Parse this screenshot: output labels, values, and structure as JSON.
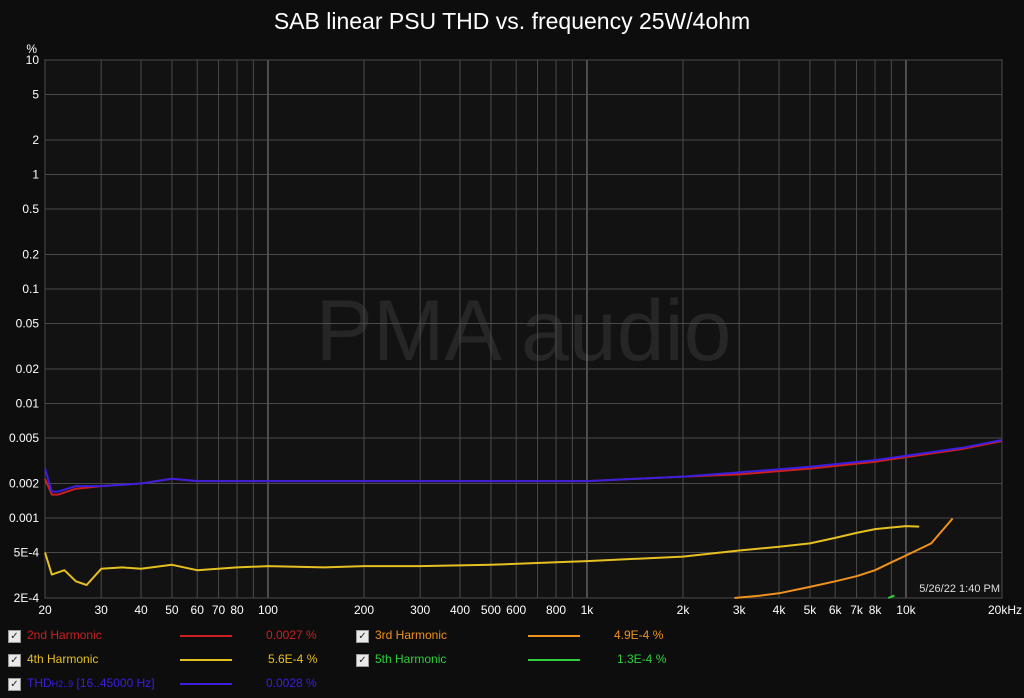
{
  "title": "SAB linear PSU THD vs. frequency 25W/4ohm",
  "watermark": "PMA audio",
  "timestamp": "5/26/22 1:40 PM",
  "colors": {
    "background": "#0d0d0d",
    "plot_bg": "#121212",
    "grid": "#555555",
    "text": "#ffffff",
    "h2": "#cc1f1f",
    "h3": "#f0921e",
    "h4": "#e6c020",
    "h5": "#2ecf3a",
    "thd": "#3a1fe0"
  },
  "chart_data": {
    "type": "line",
    "title": "SAB linear PSU THD vs. frequency 25W/4ohm",
    "xlabel": "",
    "ylabel": "%",
    "x_scale": "log",
    "y_scale": "log",
    "xlim": [
      20,
      20000
    ],
    "ylim": [
      0.0002,
      10
    ],
    "grid": true,
    "x_tick_labels": [
      "20",
      "30",
      "40",
      "50",
      "60",
      "70",
      "80",
      "100",
      "200",
      "300",
      "400",
      "500",
      "600",
      "800",
      "1k",
      "2k",
      "3k",
      "4k",
      "5k",
      "6k",
      "7k",
      "8k",
      "10k",
      "20kHz"
    ],
    "x_ticks": [
      20,
      30,
      40,
      50,
      60,
      70,
      80,
      100,
      200,
      300,
      400,
      500,
      600,
      800,
      1000,
      2000,
      3000,
      4000,
      5000,
      6000,
      7000,
      8000,
      10000,
      20000
    ],
    "y_tick_labels": [
      "10",
      "5",
      "2",
      "1",
      "0.5",
      "0.2",
      "0.1",
      "0.05",
      "0.02",
      "0.01",
      "0.005",
      "0.002",
      "0.001",
      "5E-4",
      "2E-4"
    ],
    "y_ticks": [
      10,
      5,
      2,
      1,
      0.5,
      0.2,
      0.1,
      0.05,
      0.02,
      0.01,
      0.005,
      0.002,
      0.001,
      0.0005,
      0.0002
    ],
    "series": [
      {
        "name": "2nd Harmonic",
        "color": "#cc1f1f",
        "value_label": "0.0027 %",
        "x": [
          20,
          21,
          22,
          25,
          30,
          40,
          50,
          60,
          100,
          200,
          500,
          1000,
          2000,
          3000,
          5000,
          8000,
          10000,
          15000,
          20000
        ],
        "y": [
          0.0022,
          0.0016,
          0.0016,
          0.0018,
          0.0019,
          0.002,
          0.0022,
          0.0021,
          0.0021,
          0.0021,
          0.0021,
          0.0021,
          0.0023,
          0.0024,
          0.0027,
          0.0031,
          0.0034,
          0.004,
          0.0047
        ]
      },
      {
        "name": "3rd Harmonic",
        "color": "#f0921e",
        "value_label": "4.9E-4 %",
        "x": [
          2900,
          3500,
          4000,
          5000,
          6000,
          7000,
          8000,
          9000,
          10000,
          12000,
          14000
        ],
        "y": [
          0.0002,
          0.00021,
          0.00022,
          0.00025,
          0.00028,
          0.00031,
          0.00035,
          0.00041,
          0.00047,
          0.0006,
          0.00099
        ]
      },
      {
        "name": "4th Harmonic",
        "color": "#e6c020",
        "value_label": "5.6E-4 %",
        "x": [
          20,
          21,
          23,
          25,
          27,
          30,
          35,
          40,
          50,
          60,
          80,
          100,
          150,
          200,
          300,
          500,
          800,
          1000,
          2000,
          3000,
          4000,
          5000,
          6000,
          7000,
          8000,
          10000,
          11000
        ],
        "y": [
          0.0005,
          0.00032,
          0.00035,
          0.00028,
          0.00026,
          0.00036,
          0.00037,
          0.00036,
          0.00039,
          0.00035,
          0.00037,
          0.00038,
          0.00037,
          0.00038,
          0.00038,
          0.00039,
          0.00041,
          0.00042,
          0.00046,
          0.00052,
          0.00056,
          0.0006,
          0.00067,
          0.00074,
          0.0008,
          0.00085,
          0.00084
        ]
      },
      {
        "name": "5th Harmonic",
        "color": "#2ecf3a",
        "value_label": "1.3E-4 %",
        "x": [
          8800,
          9200
        ],
        "y": [
          0.0002,
          0.00021
        ]
      },
      {
        "name": "THD",
        "name_sub": "H2..9",
        "range": "[16..45000 Hz]",
        "color": "#3a1fe0",
        "value_label": "0.0028 %",
        "x": [
          20,
          21,
          22,
          25,
          30,
          40,
          50,
          60,
          100,
          200,
          500,
          1000,
          2000,
          3000,
          5000,
          8000,
          10000,
          15000,
          20000
        ],
        "y": [
          0.0027,
          0.0017,
          0.0017,
          0.0019,
          0.0019,
          0.002,
          0.0022,
          0.0021,
          0.0021,
          0.0021,
          0.0021,
          0.0021,
          0.0023,
          0.0025,
          0.0028,
          0.0032,
          0.0035,
          0.0041,
          0.0048
        ]
      }
    ]
  },
  "legend": [
    {
      "name": "2nd Harmonic",
      "value": "0.0027 %",
      "color": "#cc1f1f",
      "checked": "✓"
    },
    {
      "name": "3rd Harmonic",
      "value": "4.9E-4 %",
      "color": "#f0921e",
      "checked": "✓"
    },
    {
      "name": "4th Harmonic",
      "value": "5.6E-4 %",
      "color": "#e6c020",
      "checked": "✓"
    },
    {
      "name": "5th Harmonic",
      "value": "1.3E-4 %",
      "color": "#2ecf3a",
      "checked": "✓"
    },
    {
      "name": "THD",
      "sub": "H2..9",
      "range": "[16..45000 Hz]",
      "value": "0.0028 %",
      "color": "#3a1fe0",
      "checked": "✓"
    }
  ]
}
